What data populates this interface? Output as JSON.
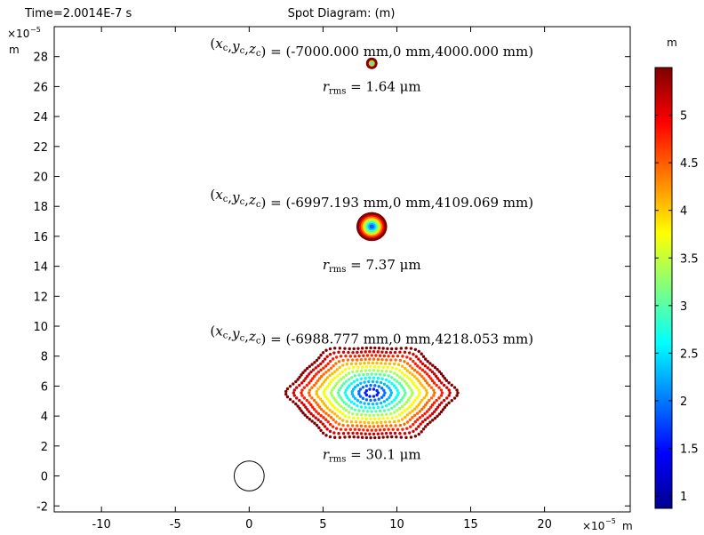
{
  "header": {
    "time_label": "Time=2.0014E-7 s",
    "title": "Spot Diagram: (m)"
  },
  "axes": {
    "exponent_label": "×10",
    "exponent_power": "−5",
    "unit": "m"
  },
  "colorbar": {
    "unit": "m",
    "ticks": [
      "1",
      "1.5",
      "2",
      "2.5",
      "3",
      "3.5",
      "4",
      "4.5",
      "5"
    ]
  },
  "chart_data": {
    "type": "scatter",
    "title": "Spot Diagram: (m)",
    "xlim": [
      -13.2,
      25.8
    ],
    "ylim": [
      -2.4,
      30.0
    ],
    "xticks": [
      -10,
      -5,
      0,
      5,
      10,
      15,
      20
    ],
    "yticks": [
      -2,
      0,
      2,
      4,
      6,
      8,
      10,
      12,
      14,
      16,
      18,
      20,
      22,
      24,
      26,
      28
    ],
    "axis_scale": "×10^-5 m",
    "colorbar_range": [
      0.87,
      5.5
    ],
    "colormap": [
      "#00008f",
      "#0000ff",
      "#00ffff",
      "#ffff00",
      "#ff0000",
      "#7f0000"
    ],
    "reference_circle": {
      "center": [
        0,
        0
      ],
      "radius": 1.0
    },
    "spots": [
      {
        "center": [
          8.3,
          5.55
        ],
        "radius_x": 5.2,
        "radius_y": 3.0,
        "rings": 12,
        "hexagonal": true,
        "coords_label": "(-6988.777 mm,0 mm,4218.053 mm)",
        "rms_value": "= 30.1 μm"
      },
      {
        "center": [
          8.3,
          16.65
        ],
        "radius_x": 0.95,
        "radius_y": 0.88,
        "rings": 8,
        "hexagonal": false,
        "coords_label": "(-6997.193 mm,0 mm,4109.069 mm)",
        "rms_value": "= 7.37 μm"
      },
      {
        "center": [
          8.3,
          27.55
        ],
        "radius_x": 0.3,
        "radius_y": 0.3,
        "rings": 3,
        "hexagonal": false,
        "coords_label": "(-7000.000 mm,0 mm,4000.000 mm)",
        "rms_value": "= 1.64 μm"
      }
    ]
  }
}
